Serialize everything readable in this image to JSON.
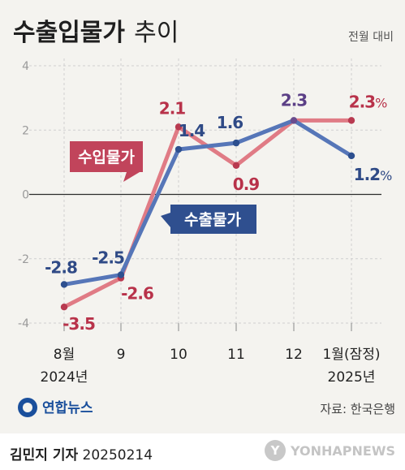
{
  "header": {
    "title_main": "수출입물가",
    "title_sub": "추이",
    "unit": "전월 대비"
  },
  "chart_data": {
    "type": "line",
    "categories": [
      "8월",
      "9",
      "10",
      "11",
      "12",
      "1월(잠정)"
    ],
    "year_labels": [
      {
        "index": 0,
        "label": "2024년"
      },
      {
        "index": 5,
        "label": "2025년"
      }
    ],
    "ylim": [
      -4,
      4
    ],
    "yticks": [
      "4",
      "2",
      "0",
      "-2",
      "-4"
    ],
    "series": [
      {
        "name": "수출물가",
        "color": "#5676b8",
        "values": [
          -2.8,
          -2.5,
          1.4,
          1.6,
          2.3,
          1.2
        ],
        "labels": [
          "-2.8",
          "-2.5",
          "1.4",
          "1.6",
          "2.3",
          "1.2"
        ]
      },
      {
        "name": "수입물가",
        "color": "#e07b85",
        "values": [
          -3.5,
          -2.6,
          2.1,
          0.9,
          2.3,
          2.3
        ],
        "labels": [
          "-3.5",
          "-2.6",
          "2.1",
          "0.9",
          "2.3",
          "2.3"
        ]
      }
    ],
    "pct_suffix": "%",
    "colors": {
      "export_dot": "#2d4f8f",
      "import_dot": "#b83a50",
      "shared_dot": "#6a4c8e",
      "export_label": "#2f4a86",
      "import_label": "#b8324a",
      "shared_label": "#5b3f86"
    }
  },
  "branding": {
    "logo": "연합뉴스",
    "source": "자료: 한국은행"
  },
  "footer": {
    "byline_name": "김민지 기자",
    "byline_date": "20250214",
    "watermark": "YONHAPNEWS"
  }
}
